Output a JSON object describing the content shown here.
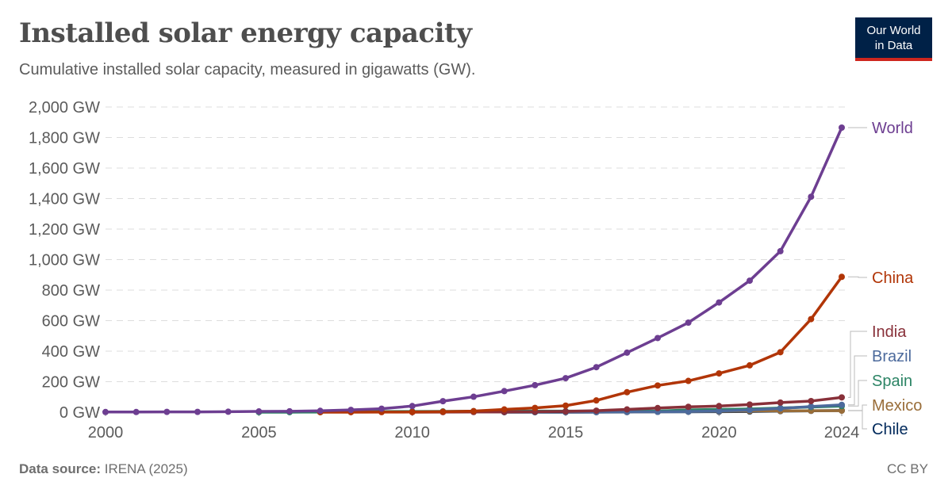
{
  "title": "Installed solar energy capacity",
  "subtitle": "Cumulative installed solar capacity, measured in gigawatts (GW).",
  "logo": [
    "Our World",
    "in Data"
  ],
  "source_label": "Data source:",
  "source_value": "IRENA (2025)",
  "license": "CC BY",
  "chart_data": {
    "type": "line",
    "xlim": [
      2000,
      2024
    ],
    "ylim": [
      0,
      2000
    ],
    "x_ticks": [
      2000,
      2005,
      2010,
      2015,
      2020,
      2024
    ],
    "y_ticks": [
      0,
      200,
      400,
      600,
      800,
      1000,
      1200,
      1400,
      1600,
      1800,
      2000
    ],
    "y_tick_labels": [
      "0 GW",
      "200 GW",
      "400 GW",
      "600 GW",
      "800 GW",
      "1,000 GW",
      "1,200 GW",
      "1,400 GW",
      "1,600 GW",
      "1,800 GW",
      "2,000 GW"
    ],
    "grid": "horizontal dashed",
    "legend": "right, end-of-line labels",
    "series": [
      {
        "name": "World",
        "color": "#6d3e91",
        "start": 2000,
        "values": [
          1,
          1,
          2,
          2,
          3,
          5,
          6,
          9,
          15,
          23,
          40,
          72,
          101,
          138,
          177,
          223,
          295,
          390,
          486,
          587,
          719,
          862,
          1055,
          1412,
          1865
        ]
      },
      {
        "name": "China",
        "color": "#b13507",
        "start": 2007,
        "values": [
          0.1,
          0.2,
          0.4,
          1,
          3,
          7,
          18,
          28,
          43,
          77,
          131,
          175,
          205,
          254,
          307,
          393,
          610,
          887
        ]
      },
      {
        "name": "India",
        "color": "#883039",
        "start": 2010,
        "values": [
          0.1,
          0.6,
          1,
          1.5,
          3,
          5,
          10,
          18,
          27,
          35,
          40,
          50,
          63,
          73,
          97
        ]
      },
      {
        "name": "Brazil",
        "color": "#4c6a9c",
        "start": 2015,
        "values": [
          0.1,
          0.1,
          1,
          2.5,
          4.6,
          8,
          14,
          25,
          37,
          48
        ]
      },
      {
        "name": "Spain",
        "color": "#2c8465",
        "start": 2005,
        "values": [
          0.1,
          0.2,
          0.7,
          3.4,
          3.6,
          4.7,
          5,
          6.5,
          7,
          7,
          7,
          7,
          7,
          7,
          15,
          18,
          21,
          27,
          34,
          40
        ]
      },
      {
        "name": "Mexico",
        "color": "#996d39",
        "start": 2015,
        "values": [
          0.2,
          0.4,
          0.7,
          3,
          4.5,
          6,
          7.5,
          8.5,
          9.5,
          10
        ]
      },
      {
        "name": "Chile",
        "color": "#00295b",
        "start": 2013,
        "values": [
          0.1,
          0.4,
          0.6,
          1.1,
          1.8,
          2.4,
          2.9,
          3.5,
          4.6,
          7,
          9,
          11
        ]
      }
    ]
  }
}
